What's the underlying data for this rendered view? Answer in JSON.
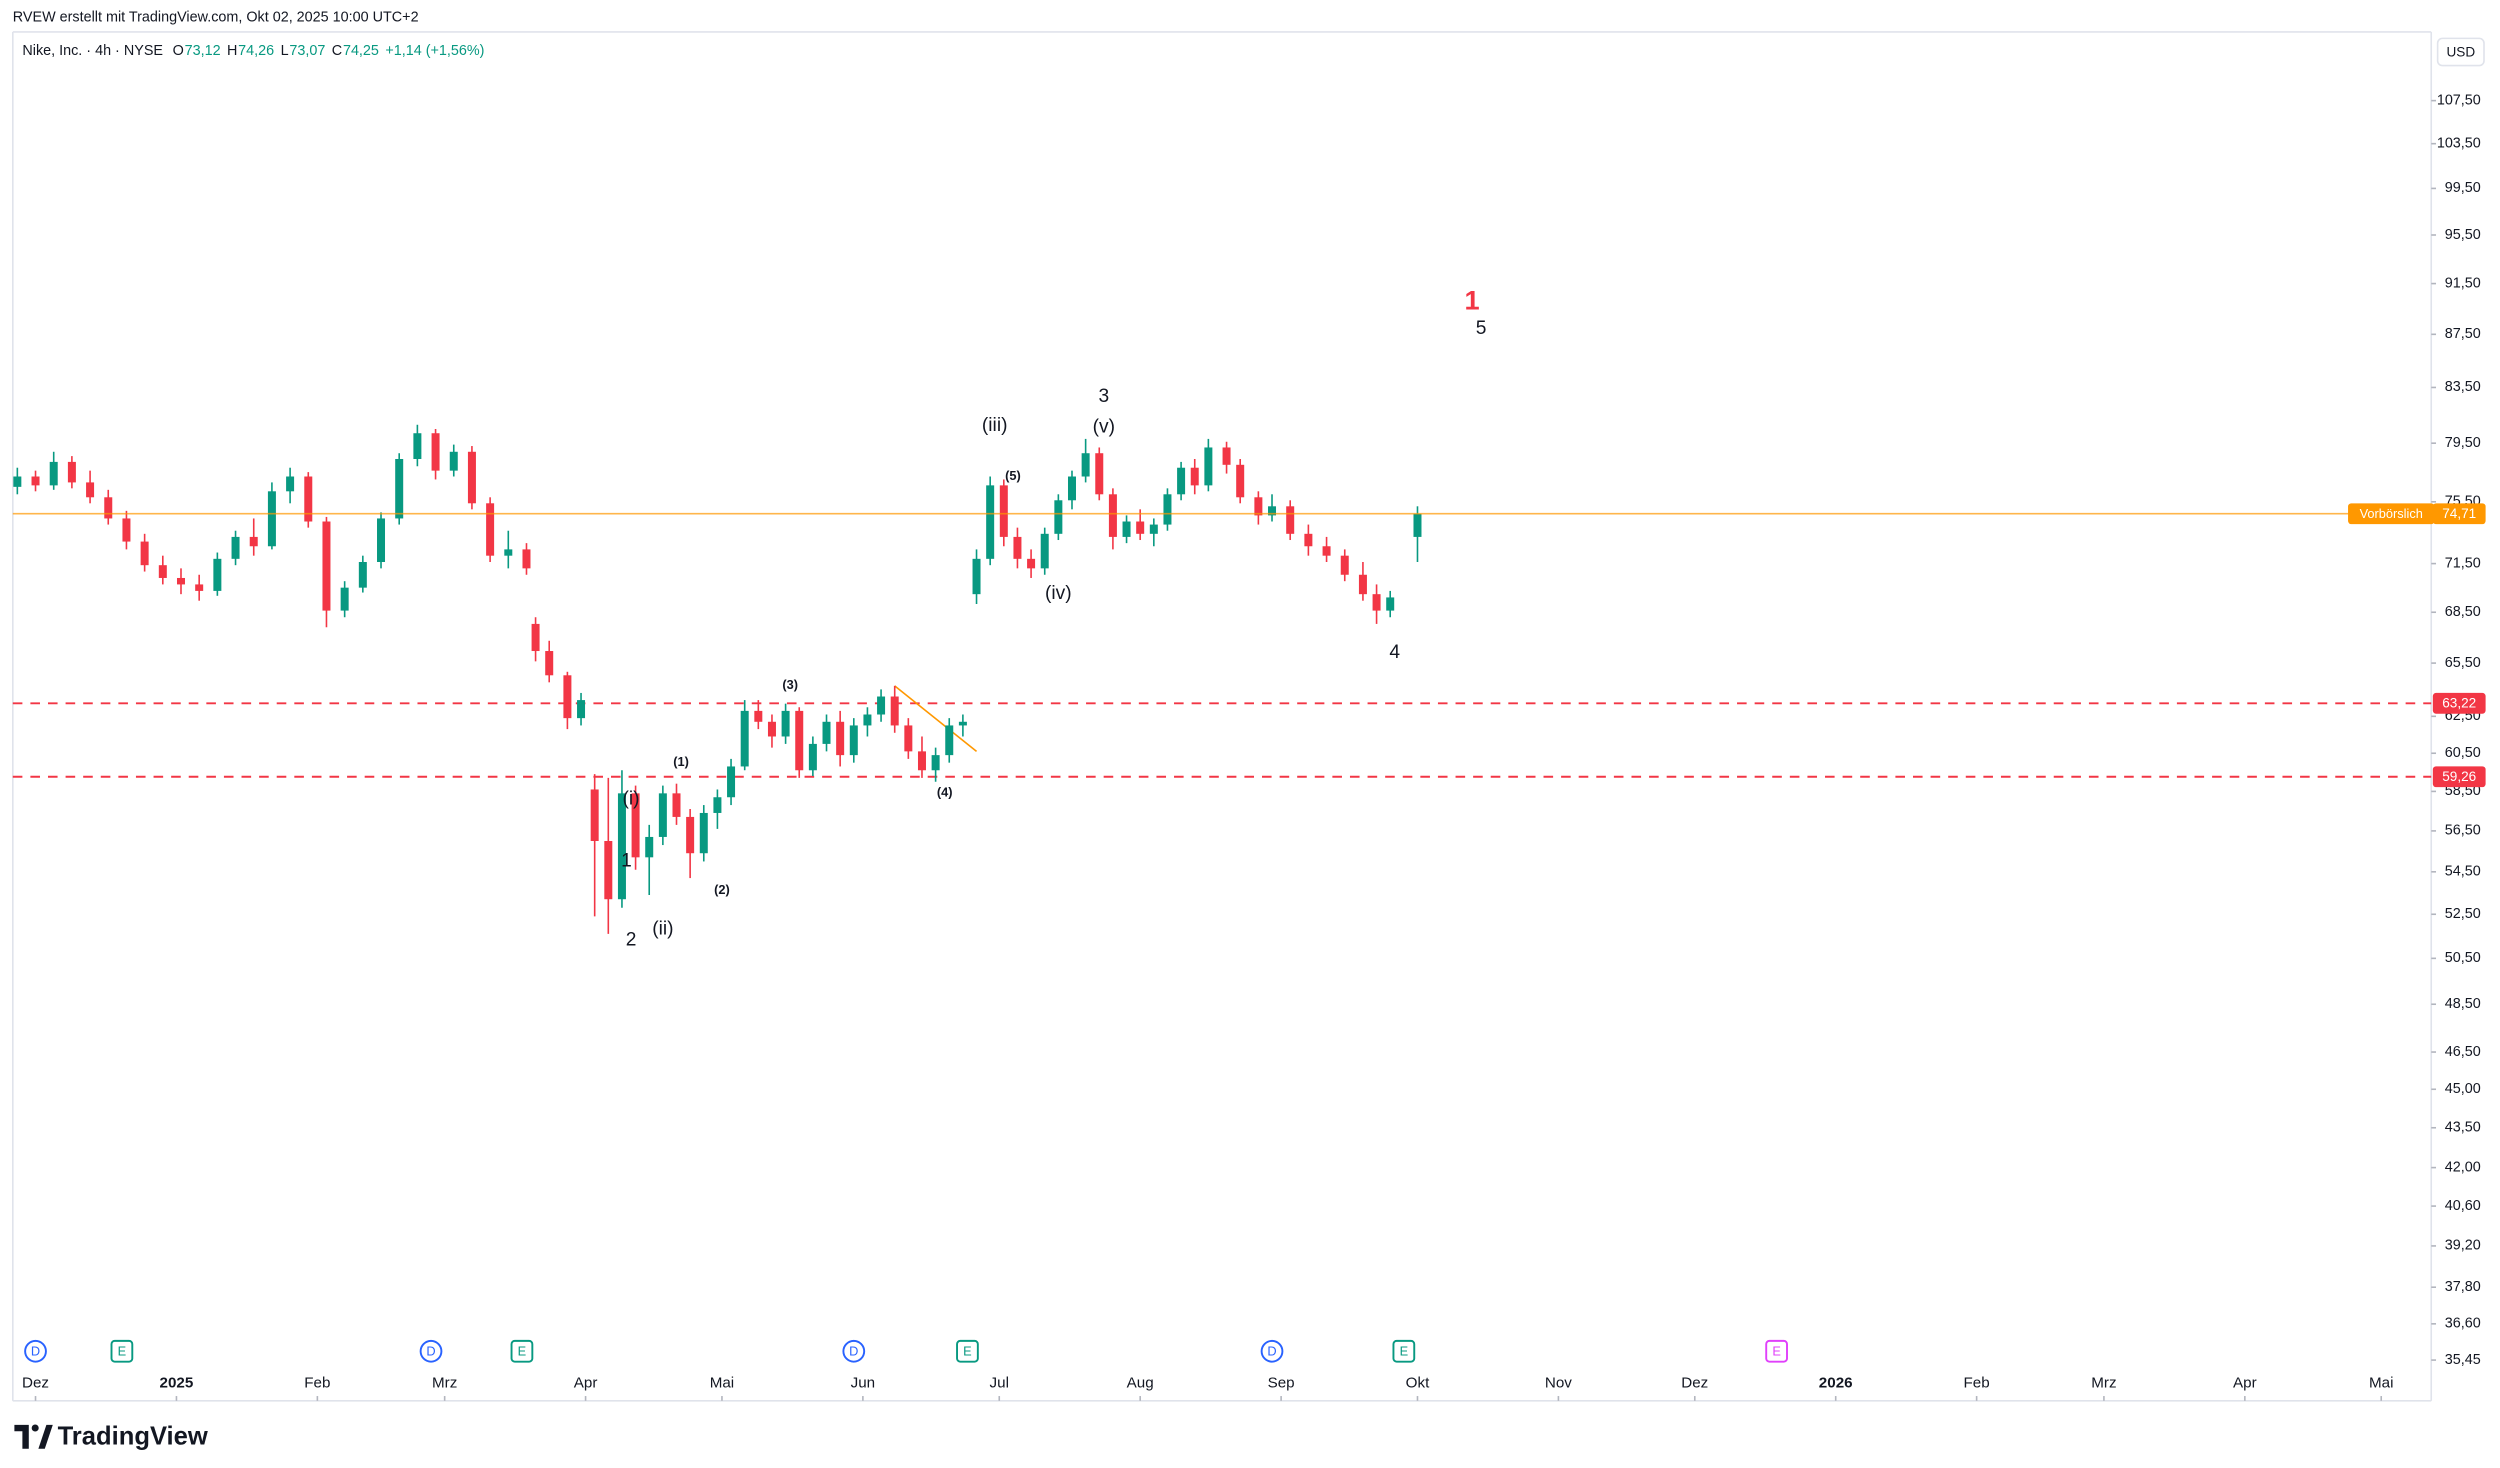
{
  "chart_data": {
    "type": "candlestick",
    "attribution": "RVEW erstellt mit TradingView.com, Okt 02, 2025 10:00 UTC+2",
    "symbol": "Nike, Inc. · 4h · NYSE",
    "ohlc": [
      {
        "key": "O",
        "text": "73,12"
      },
      {
        "key": "H",
        "text": "74,26"
      },
      {
        "key": "L",
        "text": "73,07"
      },
      {
        "key": "C",
        "text": "74,25"
      }
    ],
    "change": "+1,14 (+1,56%)",
    "currency": "USD",
    "brand": "TradingView",
    "up_color": "#089981",
    "down_color": "#f23645",
    "log_scale": true,
    "grid": false,
    "xlim": [
      -5,
      527
    ],
    "xticks": [
      {
        "value": 0,
        "label": "Dez"
      },
      {
        "value": 31,
        "label": "2025"
      },
      {
        "value": 62,
        "label": "Feb"
      },
      {
        "value": 90,
        "label": "Mrz"
      },
      {
        "value": 121,
        "label": "Apr"
      },
      {
        "value": 151,
        "label": "Mai"
      },
      {
        "value": 182,
        "label": "Jun"
      },
      {
        "value": 212,
        "label": "Jul"
      },
      {
        "value": 243,
        "label": "Aug"
      },
      {
        "value": 274,
        "label": "Sep"
      },
      {
        "value": 304,
        "label": "Okt"
      },
      {
        "value": 335,
        "label": "Nov"
      },
      {
        "value": 365,
        "label": "Dez"
      },
      {
        "value": 396,
        "label": "2026"
      },
      {
        "value": 427,
        "label": "Feb"
      },
      {
        "value": 455,
        "label": "Mrz"
      },
      {
        "value": 486,
        "label": "Apr"
      },
      {
        "value": 516,
        "label": "Mai"
      }
    ],
    "ylim": [
      34.2,
      114.2
    ],
    "yticks": [
      {
        "value": 107.5,
        "label": "107,50"
      },
      {
        "value": 103.5,
        "label": "103,50"
      },
      {
        "value": 99.5,
        "label": "99,50"
      },
      {
        "value": 95.5,
        "label": "95,50"
      },
      {
        "value": 91.5,
        "label": "91,50"
      },
      {
        "value": 87.5,
        "label": "87,50"
      },
      {
        "value": 83.5,
        "label": "83,50"
      },
      {
        "value": 79.5,
        "label": "79,50"
      },
      {
        "value": 75.5,
        "label": "75,50"
      },
      {
        "value": 71.5,
        "label": "71,50"
      },
      {
        "value": 68.5,
        "label": "68,50"
      },
      {
        "value": 65.5,
        "label": "65,50"
      },
      {
        "value": 62.5,
        "label": "62,50"
      },
      {
        "value": 60.5,
        "label": "60,50"
      },
      {
        "value": 58.5,
        "label": "58,50"
      },
      {
        "value": 56.5,
        "label": "56,50"
      },
      {
        "value": 54.5,
        "label": "54,50"
      },
      {
        "value": 52.5,
        "label": "52,50"
      },
      {
        "value": 50.5,
        "label": "50,50"
      },
      {
        "value": 48.5,
        "label": "48,50"
      },
      {
        "value": 46.5,
        "label": "46,50"
      },
      {
        "value": 45,
        "label": "45,00"
      },
      {
        "value": 43.5,
        "label": "43,50"
      },
      {
        "value": 42,
        "label": "42,00"
      },
      {
        "value": 40.6,
        "label": "40,60"
      },
      {
        "value": 39.2,
        "label": "39,20"
      },
      {
        "value": 37.8,
        "label": "37,80"
      },
      {
        "value": 36.6,
        "label": "36,60"
      },
      {
        "value": 35.45,
        "label": "35,45"
      }
    ],
    "x": [
      -4,
      0,
      4,
      8,
      12,
      16,
      20,
      24,
      28,
      32,
      36,
      40,
      44,
      48,
      52,
      56,
      60,
      64,
      68,
      72,
      76,
      80,
      84,
      88,
      92,
      96,
      100,
      104,
      108,
      110,
      113,
      117,
      120,
      123,
      126,
      129,
      132,
      135,
      138,
      141,
      144,
      147,
      150,
      153,
      156,
      159,
      162,
      165,
      168,
      171,
      174,
      177,
      180,
      183,
      186,
      189,
      192,
      195,
      198,
      201,
      204,
      207,
      210,
      213,
      216,
      219,
      222,
      225,
      228,
      231,
      234,
      237,
      240,
      243,
      246,
      249,
      252,
      255,
      258,
      262,
      265,
      269,
      272,
      276,
      280,
      284,
      288,
      292,
      295,
      298,
      304
    ],
    "open": [
      76.5,
      77.2,
      76.6,
      78.2,
      76.8,
      75.8,
      74.4,
      72.9,
      71.4,
      70.6,
      70.2,
      69.8,
      71.8,
      73.2,
      72.6,
      76.2,
      77.2,
      74.2,
      68.6,
      70.0,
      71.6,
      74.4,
      78.4,
      80.2,
      77.6,
      78.9,
      75.4,
      72.0,
      72.4,
      67.8,
      66.2,
      64.8,
      62.4,
      58.6,
      56.0,
      53.2,
      58.4,
      55.2,
      56.2,
      58.4,
      57.2,
      55.4,
      57.4,
      58.2,
      59.8,
      62.8,
      62.2,
      61.4,
      62.8,
      59.6,
      61.0,
      62.2,
      60.4,
      62.0,
      62.6,
      63.6,
      62.0,
      60.6,
      59.6,
      60.4,
      62.0,
      69.6,
      71.8,
      76.6,
      73.2,
      71.8,
      71.2,
      73.4,
      75.6,
      77.2,
      78.8,
      76.0,
      73.2,
      74.2,
      73.4,
      74.0,
      76.0,
      77.8,
      76.6,
      79.2,
      78.0,
      75.8,
      74.6,
      75.2,
      73.4,
      72.6,
      72.0,
      70.8,
      69.6,
      68.6,
      73.2
    ],
    "high": [
      77.8,
      77.6,
      78.9,
      78.6,
      77.6,
      76.3,
      74.9,
      73.4,
      72.0,
      71.2,
      70.8,
      72.2,
      73.6,
      74.4,
      76.8,
      77.8,
      77.5,
      74.5,
      70.4,
      72.0,
      74.8,
      78.8,
      80.8,
      80.5,
      79.4,
      79.3,
      75.8,
      73.6,
      72.8,
      68.2,
      66.8,
      65.0,
      63.8,
      59.4,
      59.2,
      59.6,
      58.8,
      56.8,
      58.8,
      58.9,
      57.6,
      57.8,
      58.6,
      60.2,
      63.4,
      63.4,
      62.6,
      63.2,
      63.0,
      61.4,
      62.6,
      62.8,
      62.4,
      63.0,
      64.0,
      64.2,
      62.4,
      61.4,
      60.8,
      62.4,
      62.6,
      72.4,
      77.2,
      77.0,
      73.8,
      72.4,
      73.8,
      76.0,
      77.6,
      79.8,
      79.2,
      76.4,
      74.6,
      75.0,
      74.4,
      76.4,
      78.2,
      78.4,
      79.8,
      79.6,
      78.4,
      76.2,
      76.0,
      75.6,
      74.0,
      73.2,
      72.4,
      71.6,
      70.2,
      69.8,
      75.2
    ],
    "low": [
      76.0,
      76.2,
      76.3,
      76.4,
      75.4,
      74.0,
      72.4,
      71.0,
      70.2,
      69.6,
      69.2,
      69.5,
      71.4,
      72.0,
      72.4,
      75.4,
      73.8,
      67.6,
      68.2,
      69.7,
      71.2,
      74.0,
      77.9,
      77.0,
      77.2,
      75.0,
      71.6,
      71.2,
      70.8,
      65.6,
      64.4,
      61.8,
      62.0,
      52.4,
      51.6,
      52.8,
      54.6,
      53.4,
      55.8,
      56.8,
      54.2,
      55.0,
      56.6,
      57.8,
      59.6,
      61.8,
      60.8,
      61.0,
      59.2,
      59.3,
      60.6,
      59.8,
      60.0,
      61.4,
      62.2,
      61.6,
      60.2,
      59.2,
      59.0,
      60.0,
      61.4,
      69.0,
      71.4,
      72.6,
      71.2,
      70.6,
      70.8,
      73.0,
      75.0,
      76.8,
      75.6,
      72.4,
      72.8,
      73.0,
      72.6,
      73.6,
      75.6,
      76.0,
      76.2,
      77.4,
      75.4,
      74.0,
      74.2,
      73.0,
      72.0,
      71.6,
      70.4,
      69.2,
      67.8,
      68.2,
      71.6
    ],
    "close": [
      77.2,
      76.6,
      78.2,
      76.8,
      75.8,
      74.4,
      72.9,
      71.4,
      70.6,
      70.2,
      69.8,
      71.8,
      73.2,
      72.6,
      76.2,
      77.2,
      74.2,
      68.6,
      70.0,
      71.6,
      74.4,
      78.4,
      80.2,
      77.6,
      78.9,
      75.4,
      72.0,
      72.4,
      71.2,
      66.2,
      64.8,
      62.4,
      63.4,
      56.0,
      53.2,
      58.4,
      55.2,
      56.2,
      58.4,
      57.2,
      55.4,
      57.4,
      58.2,
      59.8,
      62.8,
      62.2,
      61.4,
      62.8,
      59.6,
      61.0,
      62.2,
      60.4,
      62.0,
      62.6,
      63.6,
      62.0,
      60.6,
      59.6,
      60.4,
      62.0,
      62.2,
      71.8,
      76.6,
      73.2,
      71.8,
      71.2,
      73.4,
      75.6,
      77.2,
      78.8,
      76.0,
      73.2,
      74.2,
      73.4,
      74.0,
      76.0,
      77.8,
      76.6,
      79.2,
      78.0,
      75.8,
      74.6,
      75.2,
      73.4,
      72.6,
      72.0,
      70.8,
      69.6,
      68.6,
      69.4,
      74.7
    ],
    "price_line": {
      "name": "Vorbörslich",
      "value": 74.71,
      "label": "74,71",
      "color": "#ff9800"
    },
    "levels": [
      {
        "value": 63.22,
        "label": "63,22",
        "color": "#f23645"
      },
      {
        "value": 59.26,
        "label": "59,26",
        "color": "#f23645"
      }
    ],
    "trendline": {
      "x": [
        189,
        207
      ],
      "y": [
        64.2,
        60.6
      ],
      "color": "#ff9800"
    },
    "annotations": [
      {
        "text": "1",
        "x": 316,
        "y": 90,
        "color": "#f23645"
      },
      {
        "text": "5",
        "x": 318,
        "y": 87.9,
        "color": "#131722"
      },
      {
        "text": "3",
        "x": 235,
        "y": 82.8,
        "color": "#131722"
      },
      {
        "text": "(v)",
        "x": 235,
        "y": 80.6,
        "color": "#131722"
      },
      {
        "text": "(iii)",
        "x": 211,
        "y": 80.7,
        "color": "#131722"
      },
      {
        "text": "(5)",
        "x": 215,
        "y": 77.2,
        "color": "#131722"
      },
      {
        "text": "(iv)",
        "x": 225,
        "y": 69.6,
        "color": "#131722"
      },
      {
        "text": "4",
        "x": 299,
        "y": 66.1,
        "color": "#131722"
      },
      {
        "text": "(3)",
        "x": 166,
        "y": 64.2,
        "color": "#131722"
      },
      {
        "text": "(4)",
        "x": 200,
        "y": 58.4,
        "color": "#131722"
      },
      {
        "text": "(1)",
        "x": 142,
        "y": 60.0,
        "color": "#131722"
      },
      {
        "text": "(i)",
        "x": 131,
        "y": 58.1,
        "color": "#131722"
      },
      {
        "text": "1",
        "x": 130,
        "y": 55.0,
        "color": "#131722"
      },
      {
        "text": "(2)",
        "x": 151,
        "y": 53.6,
        "color": "#131722"
      },
      {
        "text": "(ii)",
        "x": 138,
        "y": 51.8,
        "color": "#131722"
      },
      {
        "text": "2",
        "x": 131,
        "y": 51.3,
        "color": "#131722"
      }
    ],
    "events": [
      {
        "label": "D",
        "x": 0,
        "color": "#2962ff",
        "shape": "circle"
      },
      {
        "label": "E",
        "x": 19,
        "color": "#089981",
        "shape": "square"
      },
      {
        "label": "D",
        "x": 87,
        "color": "#2962ff",
        "shape": "circle"
      },
      {
        "label": "E",
        "x": 107,
        "color": "#089981",
        "shape": "square"
      },
      {
        "label": "D",
        "x": 180,
        "color": "#2962ff",
        "shape": "circle"
      },
      {
        "label": "E",
        "x": 205,
        "color": "#089981",
        "shape": "square"
      },
      {
        "label": "D",
        "x": 272,
        "color": "#2962ff",
        "shape": "circle"
      },
      {
        "label": "E",
        "x": 301,
        "color": "#089981",
        "shape": "square"
      },
      {
        "label": "E",
        "x": 383,
        "color": "#e040fb",
        "shape": "square"
      }
    ]
  }
}
